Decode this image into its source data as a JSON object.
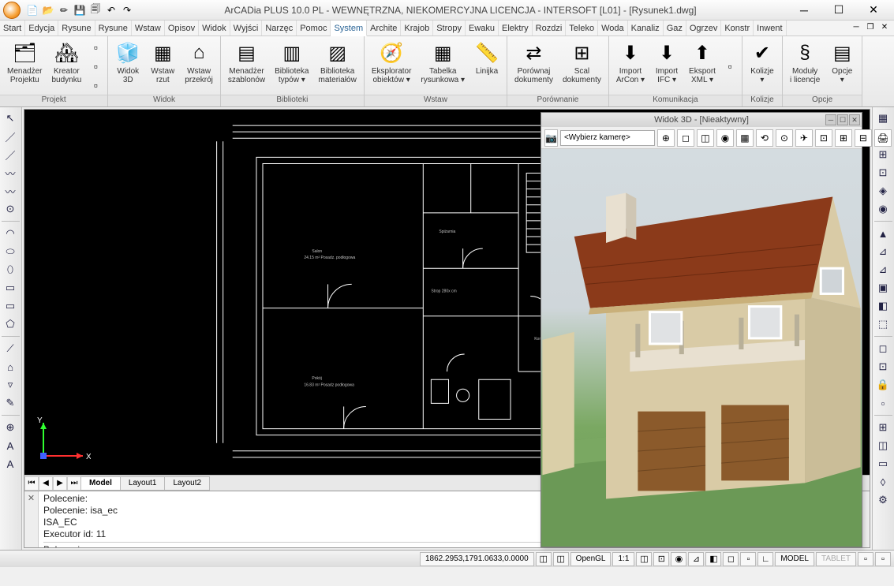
{
  "title": "ArCADia PLUS 10.0 PL - WEWNĘTRZNA, NIEKOMERCYJNA LICENCJA - INTERSOFT [L01] - [Rysunek1.dwg]",
  "qat": [
    "📄",
    "📂",
    "✏",
    "💾",
    "🗐",
    "↶",
    "↷"
  ],
  "menu": [
    "Start",
    "Edycja",
    "Rysune",
    "Rysune",
    "Wstaw",
    "Opisov",
    "Widok",
    "Wyjści",
    "Narzęc",
    "Pomoc",
    "System",
    "Archite",
    "Krajob",
    "Stropy",
    "Ewaku",
    "Elektry",
    "Rozdzi",
    "Teleko",
    "Woda",
    "Kanaliz",
    "Gaz",
    "Ogrzev",
    "Konstr",
    "Inwent"
  ],
  "menu_active": 10,
  "ribbon": [
    {
      "label": "Projekt",
      "items": [
        {
          "icon": "🗂",
          "label": "Menadżer\nProjektu"
        },
        {
          "icon": "🏘",
          "label": "Kreator\nbudynku"
        }
      ],
      "smalls": [
        "▫",
        "▫",
        "▫"
      ]
    },
    {
      "label": "Widok",
      "items": [
        {
          "icon": "🧊",
          "label": "Widok\n3D"
        },
        {
          "icon": "▦",
          "label": "Wstaw\nrzut"
        },
        {
          "icon": "⌂",
          "label": "Wstaw\nprzekrój"
        }
      ]
    },
    {
      "label": "Biblioteki",
      "items": [
        {
          "icon": "▤",
          "label": "Menadżer\nszablonów"
        },
        {
          "icon": "▥",
          "label": "Biblioteka\ntypów ▾"
        },
        {
          "icon": "▨",
          "label": "Biblioteka\nmateriałów"
        }
      ]
    },
    {
      "label": "Wstaw",
      "items": [
        {
          "icon": "🧭",
          "label": "Eksplorator\nobiektów ▾"
        },
        {
          "icon": "▦",
          "label": "Tabelka\nrysunkowa ▾"
        },
        {
          "icon": "📏",
          "label": "Linijka"
        }
      ]
    },
    {
      "label": "Porównanie",
      "items": [
        {
          "icon": "⇄",
          "label": "Porównaj\ndokumenty"
        },
        {
          "icon": "⊞",
          "label": "Scal\ndokumenty"
        }
      ]
    },
    {
      "label": "Komunikacja",
      "items": [
        {
          "icon": "⬇",
          "label": "Import\nArCon ▾",
          "badge": "ArCon"
        },
        {
          "icon": "⬇",
          "label": "Import\nIFC ▾",
          "badge": "IFC"
        },
        {
          "icon": "⬆",
          "label": "Eksport\nXML ▾",
          "badge": "XML"
        }
      ],
      "smalls": [
        "▫"
      ]
    },
    {
      "label": "Kolizje",
      "items": [
        {
          "icon": "✔",
          "label": "Kolizje\n▾"
        }
      ]
    },
    {
      "label": "Opcje",
      "items": [
        {
          "icon": "§",
          "label": "Moduły\ni licencje"
        },
        {
          "icon": "▤",
          "label": "Opcje\n▾"
        }
      ]
    }
  ],
  "left_tools": [
    "↖",
    "／",
    "／",
    "〰",
    "〰",
    "⊙",
    "◠",
    "⬭",
    "⬯",
    "▭",
    "▭",
    "⬠",
    "⟋",
    "⌂",
    "▿",
    "✎",
    "⊕",
    "A",
    "A"
  ],
  "right_tools": [
    "▦",
    "◫",
    "⊞",
    "⊡",
    "◈",
    "◉",
    "▲",
    "⊿",
    "⊿",
    "▣",
    "◧",
    "⬚",
    "◻",
    "⊡",
    "🔒",
    "▫",
    "⊞",
    "◫",
    "▭",
    "◊",
    "⚙"
  ],
  "panel3d": {
    "title": "Widok 3D - [Nieaktywny]",
    "camera": "<Wybierz kamerę>",
    "tools": [
      "⊕",
      "◻",
      "◫",
      "◉",
      "▦",
      "⟲",
      "⊙",
      "✈",
      "⊡",
      "⊞",
      "⊟",
      "🖨"
    ],
    "colors": {
      "sky": "#d4dce0",
      "ground": "#6b9956",
      "roof": "#8b3a1a",
      "wall": "#d9cba6",
      "door": "#8b5a2b"
    }
  },
  "sheet_tabs": [
    "Model",
    "Layout1",
    "Layout2"
  ],
  "sheet_active": 0,
  "cmd_history": [
    "Polecenie:",
    "Polecenie: isa_ec",
    "ISA_EC",
    "Executor id: 11"
  ],
  "cmd_prompt": "Polecenie:",
  "status": {
    "coords": "1862.2953,1791.0633,0.0000",
    "renderer": "OpenGL",
    "scale": "1:1",
    "btns": [
      "◫",
      "◫",
      "◫",
      "⊡",
      "◉",
      "⊿",
      "◧",
      "◻",
      "▫",
      "∟"
    ],
    "mode_labels": [
      "MODEL",
      "TABLET"
    ],
    "end": [
      "▫",
      "▫"
    ]
  },
  "floorplan": {
    "bg": "#000000",
    "wall_color": "#ffffff",
    "door_color": "#ff7f27",
    "dim_color": "#d8d8d8"
  }
}
